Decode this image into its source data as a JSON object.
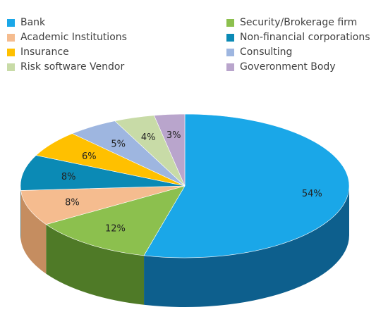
{
  "chart_data": {
    "type": "pie",
    "categories": [
      "Bank",
      "Security/Brokerage firm",
      "Academic Institutions",
      "Non-financial corporations",
      "Insurance",
      "Consulting",
      "Risk software Vendor",
      "Goveronment Body"
    ],
    "values": [
      54,
      12,
      8,
      8,
      6,
      5,
      4,
      3
    ],
    "labels": [
      "54%",
      "12%",
      "8%",
      "8%",
      "6%",
      "5%",
      "4%",
      "3%"
    ],
    "colors": [
      "#1aa7e8",
      "#8cc04e",
      "#f5bc8f",
      "#0b8ab5",
      "#ffc000",
      "#9eb6e0",
      "#c8dba7",
      "#b9a5cc"
    ],
    "side_colors": [
      "#0d5f8d",
      "#4f7a27",
      "#c58d60",
      "#085a7a",
      "#b58800",
      "#6f86b0",
      "#8fa46e",
      "#8b779e"
    ],
    "legend": "top, two columns",
    "projection": "3d-tilted"
  }
}
